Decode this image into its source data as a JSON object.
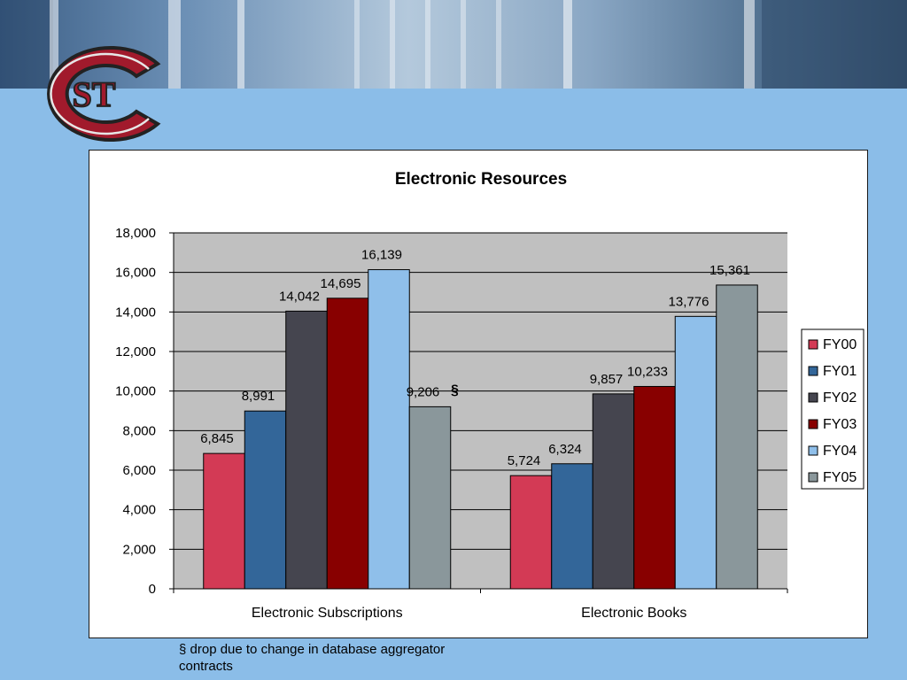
{
  "colors": {
    "background": "#8bbde8",
    "plot_area": "#c0c0c0",
    "logo_red": "#a11a2c"
  },
  "logo": {
    "text": "ST"
  },
  "chart_data": {
    "type": "bar",
    "title": "Electronic Resources",
    "categories": [
      "Electronic Subscriptions",
      "Electronic Books"
    ],
    "series": [
      {
        "name": "FY00",
        "color": "#d33a55",
        "values": [
          6845,
          5724
        ]
      },
      {
        "name": "FY01",
        "color": "#336699",
        "values": [
          8991,
          6324
        ]
      },
      {
        "name": "FY02",
        "color": "#45454f",
        "values": [
          14042,
          9857
        ]
      },
      {
        "name": "FY03",
        "color": "#880000",
        "values": [
          14695,
          10233
        ]
      },
      {
        "name": "FY04",
        "color": "#8fbfea",
        "values": [
          16139,
          13776
        ]
      },
      {
        "name": "FY05",
        "color": "#8a979b",
        "values": [
          9206,
          15361
        ]
      }
    ],
    "data_labels": [
      [
        "6,845",
        "5,724"
      ],
      [
        "8,991",
        "6,324"
      ],
      [
        "14,042",
        "9,857"
      ],
      [
        "14,695",
        "10,233"
      ],
      [
        "16,139",
        "13,776"
      ],
      [
        "9,206",
        "15,361"
      ]
    ],
    "ylim": [
      0,
      18000
    ],
    "yticks": [
      0,
      2000,
      4000,
      6000,
      8000,
      10000,
      12000,
      14000,
      16000,
      18000
    ],
    "ytick_labels": [
      "0",
      "2,000",
      "4,000",
      "6,000",
      "8,000",
      "10,000",
      "12,000",
      "14,000",
      "16,000",
      "18,000"
    ],
    "grid": true,
    "legend": "right",
    "annotation": {
      "text": "§",
      "series": "FY05",
      "category": "Electronic Subscriptions"
    }
  },
  "footnote": "§ drop due to change in database aggregator contracts"
}
